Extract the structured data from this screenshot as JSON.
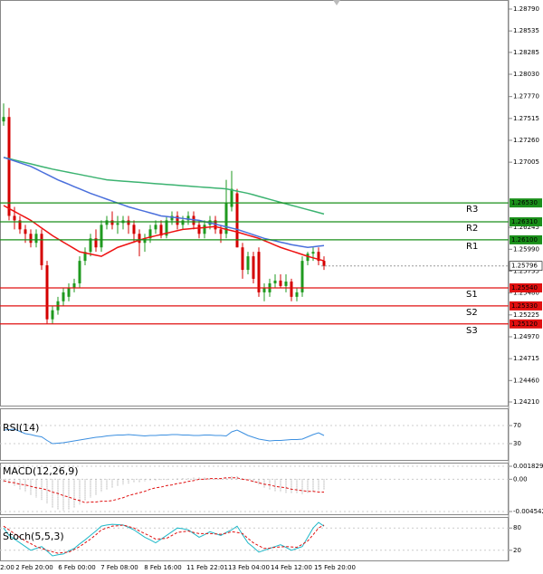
{
  "chart_data": {
    "type": "candlestick",
    "x_labels": [
      "2:00",
      "2 Feb 20:00",
      "6 Feb 00:00",
      "7 Feb 08:00",
      "8 Feb 16:00",
      "11 Feb 22:01",
      "13 Feb 04:00",
      "14 Feb 12:00",
      "15 Feb 20:00"
    ],
    "ylim": [
      1.2421,
      1.2879
    ],
    "yticks": [
      {
        "value": 1.2879,
        "label": "1.28790"
      },
      1.28535,
      1.28285,
      {
        "value": 1.2803,
        "label": "1.28030"
      },
      {
        "value": 1.2777,
        "label": "1.27770"
      },
      1.27515,
      {
        "value": 1.2726,
        "label": "1.27260"
      },
      1.27005,
      1.26245,
      {
        "value": 1.2599,
        "label": "1.25990"
      },
      1.25735,
      {
        "value": 1.2548,
        "label": "1.25480"
      },
      1.25225,
      {
        "value": 1.2497,
        "label": "1.24970"
      },
      1.24715,
      {
        "value": 1.2446,
        "label": "1.24460"
      },
      {
        "value": 1.2421,
        "label": "1.24210"
      }
    ],
    "up_color": "#1f9a1f",
    "down_color": "#d40000",
    "open": [
      1.2748,
      1.27532,
      1.26379,
      1.26327,
      1.26222,
      1.2617,
      1.26065,
      1.2617,
      1.25803,
      1.25174,
      1.25279,
      1.25384,
      1.25436,
      1.25541,
      1.25593,
      1.25855,
      1.2596,
      1.26117,
      1.26012,
      1.26275,
      1.26327,
      1.26275,
      1.26296,
      1.26327,
      1.26275,
      1.2617,
      1.26065,
      1.26117,
      1.26222,
      1.26275,
      1.26149,
      1.26327,
      1.26379,
      1.26275,
      1.26327,
      1.26379,
      1.26275,
      1.2617,
      1.26275,
      1.26327,
      1.26222,
      1.2617,
      1.26484,
      1.26642,
      1.26012,
      1.2575,
      1.25908,
      1.2596,
      1.25488,
      1.25488,
      1.25593,
      1.25625,
      1.25562,
      1.25614,
      1.25436,
      1.25488,
      1.25855,
      1.25939,
      1.2596,
      1.25855
    ],
    "high": [
      1.2769,
      1.27637,
      1.26484,
      1.26379,
      1.26275,
      1.26222,
      1.26222,
      1.26222,
      1.25855,
      1.25331,
      1.25436,
      1.25541,
      1.25593,
      1.25646,
      1.25908,
      1.26012,
      1.2617,
      1.26222,
      1.26327,
      1.26379,
      1.26432,
      1.26379,
      1.26379,
      1.26379,
      1.26327,
      1.26222,
      1.2617,
      1.26275,
      1.26327,
      1.26327,
      1.26379,
      1.26432,
      1.26432,
      1.26379,
      1.26432,
      1.26432,
      1.26327,
      1.26327,
      1.26379,
      1.26379,
      1.26275,
      1.26799,
      1.26904,
      1.26694,
      1.26065,
      1.2596,
      1.2596,
      1.26012,
      1.25593,
      1.25646,
      1.25698,
      1.25698,
      1.25698,
      1.25646,
      1.25541,
      1.25908,
      1.2596,
      1.26012,
      1.26012,
      1.25908
    ],
    "low": [
      1.2743,
      1.26327,
      1.26222,
      1.2617,
      1.26065,
      1.26012,
      1.26012,
      1.2575,
      1.25122,
      1.25122,
      1.25227,
      1.25331,
      1.25384,
      1.25488,
      1.25541,
      1.25803,
      1.25908,
      1.2596,
      1.2596,
      1.26222,
      1.26222,
      1.2617,
      1.26222,
      1.2617,
      1.26065,
      1.25908,
      1.2596,
      1.26065,
      1.2617,
      1.26117,
      1.26117,
      1.26275,
      1.26222,
      1.26222,
      1.26275,
      1.26222,
      1.26117,
      1.26117,
      1.26222,
      1.2617,
      1.26065,
      1.26117,
      1.26432,
      1.26012,
      1.25646,
      1.25698,
      1.25593,
      1.25436,
      1.25384,
      1.25436,
      1.25541,
      1.25541,
      1.25488,
      1.25384,
      1.25384,
      1.25436,
      1.25803,
      1.25855,
      1.25803,
      1.2575
    ],
    "close": [
      1.27532,
      1.26379,
      1.26327,
      1.26222,
      1.2617,
      1.26065,
      1.2617,
      1.25803,
      1.25174,
      1.25279,
      1.25384,
      1.25488,
      1.25541,
      1.25593,
      1.25855,
      1.2596,
      1.26117,
      1.26012,
      1.26275,
      1.26327,
      1.26275,
      1.26296,
      1.26327,
      1.26275,
      1.2617,
      1.26065,
      1.26117,
      1.26222,
      1.26275,
      1.26149,
      1.26327,
      1.26379,
      1.26275,
      1.26327,
      1.26379,
      1.26275,
      1.2617,
      1.26275,
      1.26327,
      1.26222,
      1.2617,
      1.26537,
      1.26694,
      1.26012,
      1.2575,
      1.25908,
      1.25646,
      1.25488,
      1.25541,
      1.25593,
      1.25625,
      1.25562,
      1.25614,
      1.25436,
      1.25488,
      1.25855,
      1.25939,
      1.2596,
      1.25855,
      1.25796
    ],
    "moving_averages": [
      {
        "color": "#3cb371",
        "values": [
          1.27061,
          1.27046,
          1.27031,
          1.27015,
          1.27,
          1.26985,
          1.2697,
          1.26954,
          1.26939,
          1.26924,
          1.26912,
          1.26899,
          1.26887,
          1.26874,
          1.26862,
          1.26849,
          1.26837,
          1.26824,
          1.26812,
          1.26799,
          1.26794,
          1.26789,
          1.26784,
          1.2678,
          1.26775,
          1.2677,
          1.26765,
          1.2676,
          1.26755,
          1.2675,
          1.26746,
          1.26741,
          1.26736,
          1.26731,
          1.26727,
          1.26722,
          1.26717,
          1.26713,
          1.26708,
          1.26703,
          1.26699,
          1.26694,
          1.26681,
          1.26668,
          1.26655,
          1.26642,
          1.26625,
          1.26607,
          1.2659,
          1.26572,
          1.26555,
          1.26537,
          1.2652,
          1.26503,
          1.26486,
          1.26469,
          1.26452,
          1.26435,
          1.26418,
          1.26401
        ]
      },
      {
        "color": "#4a6fdc",
        "values": [
          1.27061,
          1.2704,
          1.27019,
          1.26998,
          1.26977,
          1.26956,
          1.26925,
          1.26893,
          1.26862,
          1.2683,
          1.26799,
          1.26773,
          1.26747,
          1.2672,
          1.26694,
          1.26668,
          1.26642,
          1.26619,
          1.26597,
          1.26574,
          1.26552,
          1.26529,
          1.26507,
          1.26484,
          1.26467,
          1.26449,
          1.26432,
          1.26414,
          1.26397,
          1.26379,
          1.26372,
          1.26364,
          1.26357,
          1.26349,
          1.26342,
          1.26334,
          1.26327,
          1.26312,
          1.26297,
          1.26282,
          1.26267,
          1.26252,
          1.26237,
          1.26222,
          1.26201,
          1.2618,
          1.26159,
          1.26138,
          1.26117,
          1.26102,
          1.26088,
          1.26073,
          1.26059,
          1.26044,
          1.26033,
          1.26023,
          1.26012,
          1.26019,
          1.26026,
          1.26033
        ]
      },
      {
        "color": "#ee1111",
        "values": [
          1.265,
          1.26465,
          1.26431,
          1.26396,
          1.26362,
          1.26327,
          1.26283,
          1.26238,
          1.26194,
          1.26149,
          1.26111,
          1.26073,
          1.26036,
          1.25998,
          1.2596,
          1.25947,
          1.25934,
          1.25921,
          1.25908,
          1.25943,
          1.25977,
          1.26012,
          1.26033,
          1.26054,
          1.26075,
          1.26096,
          1.26117,
          1.26132,
          1.26147,
          1.26162,
          1.26177,
          1.26192,
          1.26207,
          1.26222,
          1.26227,
          1.26233,
          1.26238,
          1.26243,
          1.26249,
          1.26254,
          1.26238,
          1.26222,
          1.26207,
          1.26191,
          1.26173,
          1.26154,
          1.26136,
          1.26117,
          1.26091,
          1.26065,
          1.26038,
          1.26012,
          1.25991,
          1.2597,
          1.2595,
          1.25929,
          1.25908,
          1.2589,
          1.25873,
          1.25855
        ]
      }
    ],
    "levels": [
      {
        "name": "R3",
        "value": 1.2653,
        "label": "1.26530",
        "color": "#1a8f1a"
      },
      {
        "name": "R2",
        "value": 1.2631,
        "label": "1.26310",
        "color": "#1a8f1a"
      },
      {
        "name": "R1",
        "value": 1.261,
        "label": "1.26100",
        "color": "#1a8f1a"
      },
      {
        "name": "S1",
        "value": 1.2554,
        "label": "1.25540",
        "color": "#e01010"
      },
      {
        "name": "S2",
        "value": 1.2533,
        "label": "1.25330",
        "color": "#e01010"
      },
      {
        "name": "S3",
        "value": 1.2512,
        "label": "1.25120",
        "color": "#e01010"
      }
    ],
    "last_price": 1.25796,
    "panels": [
      {
        "type": "line",
        "title": "RSI(14)",
        "ylim": [
          0,
          100
        ],
        "yticks": [
          70,
          30
        ],
        "series": [
          {
            "color": "#3b8fe0",
            "values": [
              60,
              61,
              62,
              57,
              52,
              50,
              47,
              45,
              37,
              30,
              31,
              32,
              34,
              36,
              38,
              40,
              42,
              44,
              45,
              47,
              48,
              49,
              49,
              50,
              49,
              48,
              47,
              48,
              48,
              49,
              49,
              50,
              50,
              49,
              49,
              48,
              48,
              49,
              49,
              48,
              48,
              47,
              56,
              60,
              54,
              48,
              44,
              40,
              38,
              36,
              37,
              37,
              38,
              39,
              39,
              40,
              45,
              50,
              54,
              48
            ]
          }
        ]
      },
      {
        "type": "macd",
        "title": "MACD(12,26,9)",
        "ylim": [
          -0.004542,
          0.001829
        ],
        "yticks": [
          0.001829,
          {
            "value": 0,
            "label": "0.00"
          },
          -0.004542
        ],
        "histogram": {
          "color": "#999999",
          "values": [
            -0.0004,
            -0.0006,
            -0.001,
            -0.0014,
            -0.0018,
            -0.0022,
            -0.0026,
            -0.0029,
            -0.0034,
            -0.004,
            -0.0043,
            -0.0044,
            -0.0043,
            -0.004,
            -0.0036,
            -0.003,
            -0.0026,
            -0.0022,
            -0.0018,
            -0.0015,
            -0.0012,
            -0.001,
            -0.0008,
            -0.0006,
            -0.0005,
            -0.0004,
            -0.0003,
            -0.0002,
            -0.0002,
            -0.0001,
            -0.0001,
            0,
            0.0001,
            0.0002,
            0.0002,
            0.0003,
            0.0003,
            0.0003,
            0.0002,
            0.0002,
            0.0001,
            0.0002,
            0.0004,
            0.0005,
            0.0002,
            -0.0002,
            -0.0005,
            -0.0008,
            -0.0012,
            -0.0015,
            -0.0017,
            -0.0018,
            -0.0019,
            -0.002,
            -0.002,
            -0.0021,
            -0.0019,
            -0.0017,
            -0.0016,
            -0.0015
          ]
        },
        "signal": {
          "color": "#e01010",
          "values": [
            -0.0002,
            -0.0004,
            -0.0005,
            -0.0007,
            -0.0008,
            -0.001,
            -0.0012,
            -0.0013,
            -0.0015,
            -0.0018,
            -0.002,
            -0.0023,
            -0.0025,
            -0.0028,
            -0.003,
            -0.0033,
            -0.0032,
            -0.0032,
            -0.0031,
            -0.0031,
            -0.003,
            -0.0028,
            -0.0026,
            -0.0023,
            -0.0021,
            -0.0019,
            -0.0017,
            -0.0014,
            -0.0012,
            -0.0011,
            -0.0009,
            -0.0008,
            -0.0006,
            -0.0005,
            -0.0003,
            -0.0002,
            0,
            0,
            0.0001,
            0.0001,
            0.0001,
            0.0002,
            0.0002,
            0.0002,
            0,
            -0.0001,
            -0.0003,
            -0.0005,
            -0.0007,
            -0.0008,
            -0.001,
            -0.0011,
            -0.0012,
            -0.0014,
            -0.0015,
            -0.0016,
            -0.0017,
            -0.0017,
            -0.0018,
            -0.0018
          ]
        }
      },
      {
        "type": "line",
        "title": "Stoch(5,5,3)",
        "ylim": [
          0,
          100
        ],
        "yticks": [
          80,
          20
        ],
        "series": [
          {
            "color": "#20b8c8",
            "values": [
              80,
              60,
              50,
              40,
              30,
              20,
              25,
              30,
              18,
              5,
              8,
              10,
              18,
              25,
              37,
              48,
              60,
              72,
              85,
              88,
              90,
              89,
              88,
              82,
              75,
              65,
              55,
              48,
              40,
              50,
              60,
              70,
              80,
              78,
              75,
              65,
              55,
              62,
              70,
              65,
              60,
              68,
              75,
              85,
              62,
              40,
              28,
              15,
              20,
              25,
              30,
              35,
              28,
              20,
              25,
              30,
              55,
              80,
              95,
              85
            ]
          },
          {
            "color": "#e01010",
            "dash": true,
            "values": [
              85,
              75,
              65,
              55,
              45,
              38,
              30,
              25,
              20,
              16,
              12,
              14,
              15,
              22,
              30,
              40,
              50,
              62,
              75,
              80,
              85,
              86,
              88,
              84,
              80,
              72,
              65,
              58,
              50,
              51,
              52,
              60,
              68,
              70,
              72,
              68,
              65,
              65,
              65,
              64,
              63,
              66,
              70,
              68,
              65,
              52,
              40,
              32,
              25,
              26,
              28,
              29,
              30,
              29,
              28,
              36,
              45,
              62,
              80,
              88
            ]
          }
        ]
      }
    ]
  }
}
